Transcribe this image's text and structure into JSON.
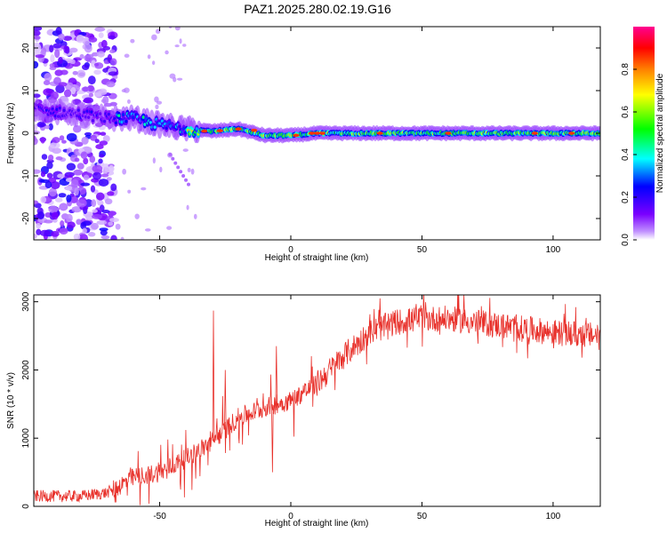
{
  "title": "PAZ1.2025.280.02.19.G16",
  "chart_data": [
    {
      "type": "heatmap",
      "name": "spectrogram",
      "xlabel": "Height of straight line (km)",
      "ylabel": "Frequency (Hz)",
      "xlim": [
        -98,
        118
      ],
      "ylim": [
        -25,
        25
      ],
      "xticks": [
        -50,
        0,
        50,
        100
      ],
      "yticks": [
        -20,
        -10,
        0,
        10,
        20
      ],
      "colorbar": {
        "label": "Normalized spectral amplitude",
        "range": [
          0,
          1
        ],
        "ticks": [
          "0.0",
          "0.2",
          "0.4",
          "0.6",
          "0.8"
        ],
        "colors": [
          "#ffffff",
          "#7a00ff",
          "#0000ff",
          "#00ffff",
          "#00ff00",
          "#ffff00",
          "#ff8000",
          "#ff0000",
          "#ff0090"
        ]
      },
      "ridge": {
        "description_points_km_hz": [
          [
            -98,
            6
          ],
          [
            -90,
            5
          ],
          [
            -80,
            4.5
          ],
          [
            -70,
            3.5
          ],
          [
            -60,
            3.5
          ],
          [
            -50,
            2
          ],
          [
            -40,
            1
          ],
          [
            -30,
            0.5
          ],
          [
            -20,
            1
          ],
          [
            -10,
            -0.5
          ],
          [
            0,
            -0.5
          ],
          [
            10,
            0
          ],
          [
            20,
            0
          ],
          [
            50,
            0
          ],
          [
            118,
            0
          ]
        ],
        "peak_amplitude_after_km": 10,
        "peak_amplitude": 0.85
      },
      "noise_region_km": [
        -98,
        -67
      ]
    },
    {
      "type": "line",
      "name": "snr",
      "xlabel": "Height of straight line (km)",
      "ylabel": "SNR (10 * v/v)",
      "xlim": [
        -98,
        118
      ],
      "ylim": [
        0,
        3100
      ],
      "xticks": [
        -50,
        0,
        50,
        100
      ],
      "yticks": [
        0,
        1000,
        2000,
        3000
      ],
      "color": "#e8302a",
      "trend_points": [
        [
          -98,
          150
        ],
        [
          -80,
          150
        ],
        [
          -70,
          200
        ],
        [
          -60,
          420
        ],
        [
          -50,
          500
        ],
        [
          -40,
          700
        ],
        [
          -30,
          950
        ],
        [
          -20,
          1300
        ],
        [
          -10,
          1450
        ],
        [
          0,
          1550
        ],
        [
          10,
          1800
        ],
        [
          20,
          2200
        ],
        [
          30,
          2550
        ],
        [
          40,
          2700
        ],
        [
          50,
          2750
        ],
        [
          60,
          2750
        ],
        [
          70,
          2700
        ],
        [
          80,
          2650
        ],
        [
          90,
          2600
        ],
        [
          100,
          2550
        ],
        [
          118,
          2500
        ]
      ],
      "spikes": [
        [
          -29.5,
          2870
        ],
        [
          -25,
          2000
        ],
        [
          -5.5,
          2350
        ],
        [
          -7,
          500
        ],
        [
          34,
          3050
        ],
        [
          66,
          3100
        ]
      ]
    }
  ]
}
